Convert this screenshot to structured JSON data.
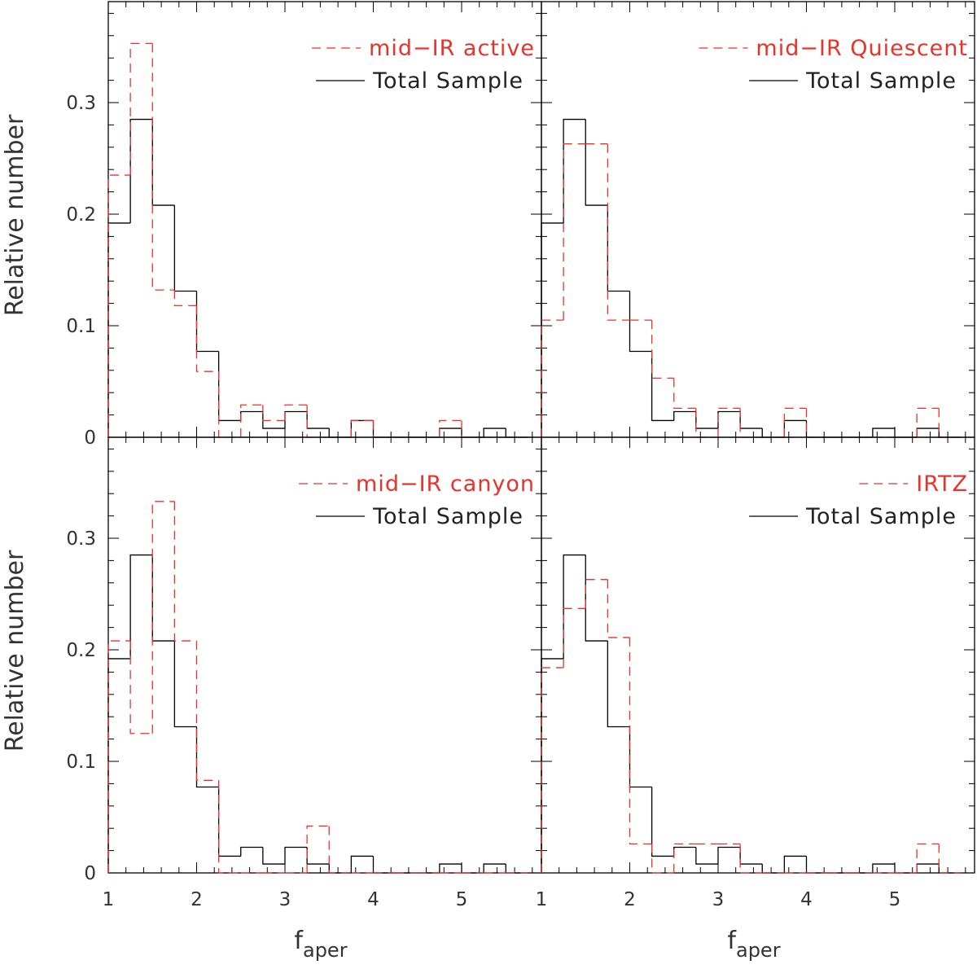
{
  "ylabel": "Relative number",
  "xlabel_main": "f",
  "xlabel_sub": "aper",
  "colors": {
    "total": "#000000",
    "subset": "#e8332b"
  },
  "panels": [
    {
      "legend": {
        "subset": "mid−IR active",
        "total": "Total Sample"
      },
      "chart_data": {
        "type": "bar",
        "bin_edges": [
          1.0,
          1.25,
          1.5,
          1.75,
          2.0,
          2.25,
          2.5,
          2.75,
          3.0,
          3.25,
          3.5,
          3.75,
          4.0,
          4.25,
          4.5,
          4.75,
          5.0,
          5.25,
          5.5,
          5.75
        ],
        "series": [
          {
            "name": "Total Sample",
            "style": "solid",
            "values": [
              0.192,
              0.285,
              0.208,
              0.131,
              0.077,
              0.015,
              0.023,
              0.008,
              0.023,
              0.008,
              0.0,
              0.015,
              0.0,
              0.0,
              0.0,
              0.008,
              0.0,
              0.008,
              0.0
            ]
          },
          {
            "name": "mid−IR active",
            "style": "dashed",
            "values": [
              0.235,
              0.353,
              0.132,
              0.118,
              0.059,
              0.0,
              0.029,
              0.015,
              0.029,
              0.0,
              0.0,
              0.015,
              0.0,
              0.0,
              0.0,
              0.015,
              0.0,
              0.0,
              0.0
            ]
          }
        ],
        "xlim": [
          1.0,
          5.9
        ],
        "ylim": [
          0,
          0.39
        ]
      }
    },
    {
      "legend": {
        "subset": "mid−IR Quiescent",
        "total": "Total Sample"
      },
      "chart_data": {
        "type": "bar",
        "bin_edges": [
          1.0,
          1.25,
          1.5,
          1.75,
          2.0,
          2.25,
          2.5,
          2.75,
          3.0,
          3.25,
          3.5,
          3.75,
          4.0,
          4.25,
          4.5,
          4.75,
          5.0,
          5.25,
          5.5,
          5.75
        ],
        "series": [
          {
            "name": "Total Sample",
            "style": "solid",
            "values": [
              0.192,
              0.285,
              0.208,
              0.131,
              0.077,
              0.015,
              0.023,
              0.008,
              0.023,
              0.008,
              0.0,
              0.015,
              0.0,
              0.0,
              0.0,
              0.008,
              0.0,
              0.008,
              0.0
            ]
          },
          {
            "name": "mid−IR Quiescent",
            "style": "dashed",
            "values": [
              0.105,
              0.263,
              0.263,
              0.105,
              0.105,
              0.053,
              0.026,
              0.0,
              0.026,
              0.0,
              0.0,
              0.026,
              0.0,
              0.0,
              0.0,
              0.0,
              0.0,
              0.026,
              0.0
            ]
          }
        ],
        "xlim": [
          1.0,
          5.9
        ],
        "ylim": [
          0,
          0.39
        ]
      }
    },
    {
      "legend": {
        "subset": "mid−IR canyon",
        "total": "Total Sample"
      },
      "chart_data": {
        "type": "bar",
        "bin_edges": [
          1.0,
          1.25,
          1.5,
          1.75,
          2.0,
          2.25,
          2.5,
          2.75,
          3.0,
          3.25,
          3.5,
          3.75,
          4.0,
          4.25,
          4.5,
          4.75,
          5.0,
          5.25,
          5.5,
          5.75
        ],
        "series": [
          {
            "name": "Total Sample",
            "style": "solid",
            "values": [
              0.192,
              0.285,
              0.208,
              0.131,
              0.077,
              0.015,
              0.023,
              0.008,
              0.023,
              0.008,
              0.0,
              0.015,
              0.0,
              0.0,
              0.0,
              0.008,
              0.0,
              0.008,
              0.0
            ]
          },
          {
            "name": "mid−IR canyon",
            "style": "dashed",
            "values": [
              0.208,
              0.125,
              0.333,
              0.208,
              0.083,
              0.0,
              0.0,
              0.0,
              0.0,
              0.042,
              0.0,
              0.0,
              0.0,
              0.0,
              0.0,
              0.0,
              0.0,
              0.0,
              0.0
            ]
          }
        ],
        "xlim": [
          1.0,
          5.9
        ],
        "ylim": [
          0,
          0.39
        ]
      }
    },
    {
      "legend": {
        "subset": "IRTZ",
        "total": "Total Sample"
      },
      "chart_data": {
        "type": "bar",
        "bin_edges": [
          1.0,
          1.25,
          1.5,
          1.75,
          2.0,
          2.25,
          2.5,
          2.75,
          3.0,
          3.25,
          3.5,
          3.75,
          4.0,
          4.25,
          4.5,
          4.75,
          5.0,
          5.25,
          5.5,
          5.75
        ],
        "series": [
          {
            "name": "Total Sample",
            "style": "solid",
            "values": [
              0.192,
              0.285,
              0.208,
              0.131,
              0.077,
              0.015,
              0.023,
              0.008,
              0.023,
              0.008,
              0.0,
              0.015,
              0.0,
              0.0,
              0.0,
              0.008,
              0.0,
              0.008,
              0.0
            ]
          },
          {
            "name": "IRTZ",
            "style": "dashed",
            "values": [
              0.184,
              0.237,
              0.263,
              0.211,
              0.026,
              0.0,
              0.026,
              0.026,
              0.026,
              0.0,
              0.0,
              0.0,
              0.0,
              0.0,
              0.0,
              0.0,
              0.0,
              0.026,
              0.0
            ]
          }
        ],
        "xlim": [
          1.0,
          5.9
        ],
        "ylim": [
          0,
          0.39
        ]
      }
    }
  ],
  "y_ticks": [
    {
      "value": 0,
      "label": "0"
    },
    {
      "value": 0.1,
      "label": "0.1"
    },
    {
      "value": 0.2,
      "label": "0.2"
    },
    {
      "value": 0.3,
      "label": "0.3"
    }
  ],
  "x_ticks_left": [
    {
      "value": 1,
      "label": "1"
    },
    {
      "value": 2,
      "label": "2"
    },
    {
      "value": 3,
      "label": "3"
    },
    {
      "value": 4,
      "label": "4"
    },
    {
      "value": 5,
      "label": "5"
    }
  ],
  "x_ticks_right": [
    {
      "value": 1,
      "label": "1"
    },
    {
      "value": 2,
      "label": "2"
    },
    {
      "value": 3,
      "label": "3"
    },
    {
      "value": 4,
      "label": "4"
    },
    {
      "value": 5,
      "label": "5"
    }
  ]
}
